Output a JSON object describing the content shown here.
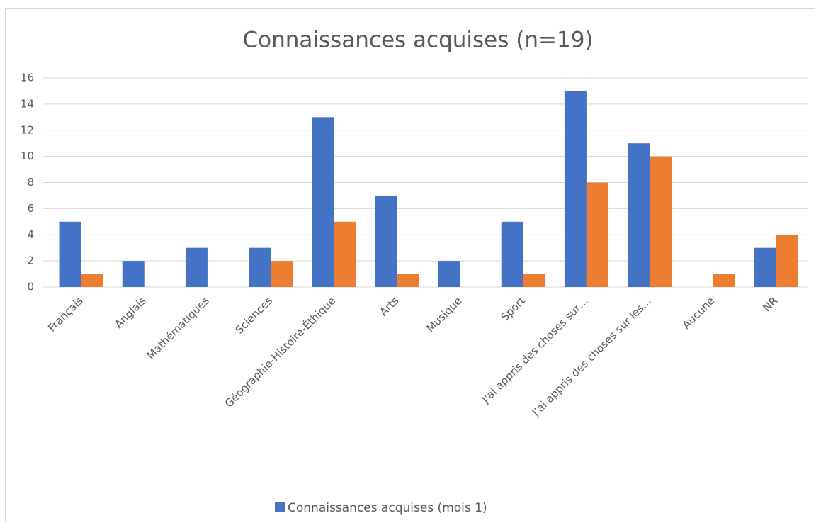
{
  "chart_data": {
    "type": "bar",
    "title": "Connaissances acquises (n=19)",
    "categories": [
      "Français",
      "Anglais",
      "Mathématiques",
      "Sciences",
      "Géographie-Histoire-Éthique",
      "Arts",
      "Musique",
      "Sport",
      "J'ai appris des choses sur…",
      "J'ai appris des choses sur les…",
      "Aucune",
      "NR"
    ],
    "series": [
      {
        "name": "Connaissances acquises (mois 1)",
        "color": "#4472c4",
        "values": [
          5,
          2,
          3,
          3,
          13,
          7,
          2,
          5,
          15,
          11,
          0,
          3
        ]
      },
      {
        "color": "#ed7d31",
        "values": [
          1,
          0,
          0,
          2,
          5,
          1,
          0,
          1,
          8,
          10,
          1,
          4
        ]
      }
    ],
    "ylim": [
      0,
      16
    ],
    "yticks": [
      0,
      2,
      4,
      6,
      8,
      10,
      12,
      14,
      16
    ],
    "grid": true,
    "legend": "bottom"
  }
}
